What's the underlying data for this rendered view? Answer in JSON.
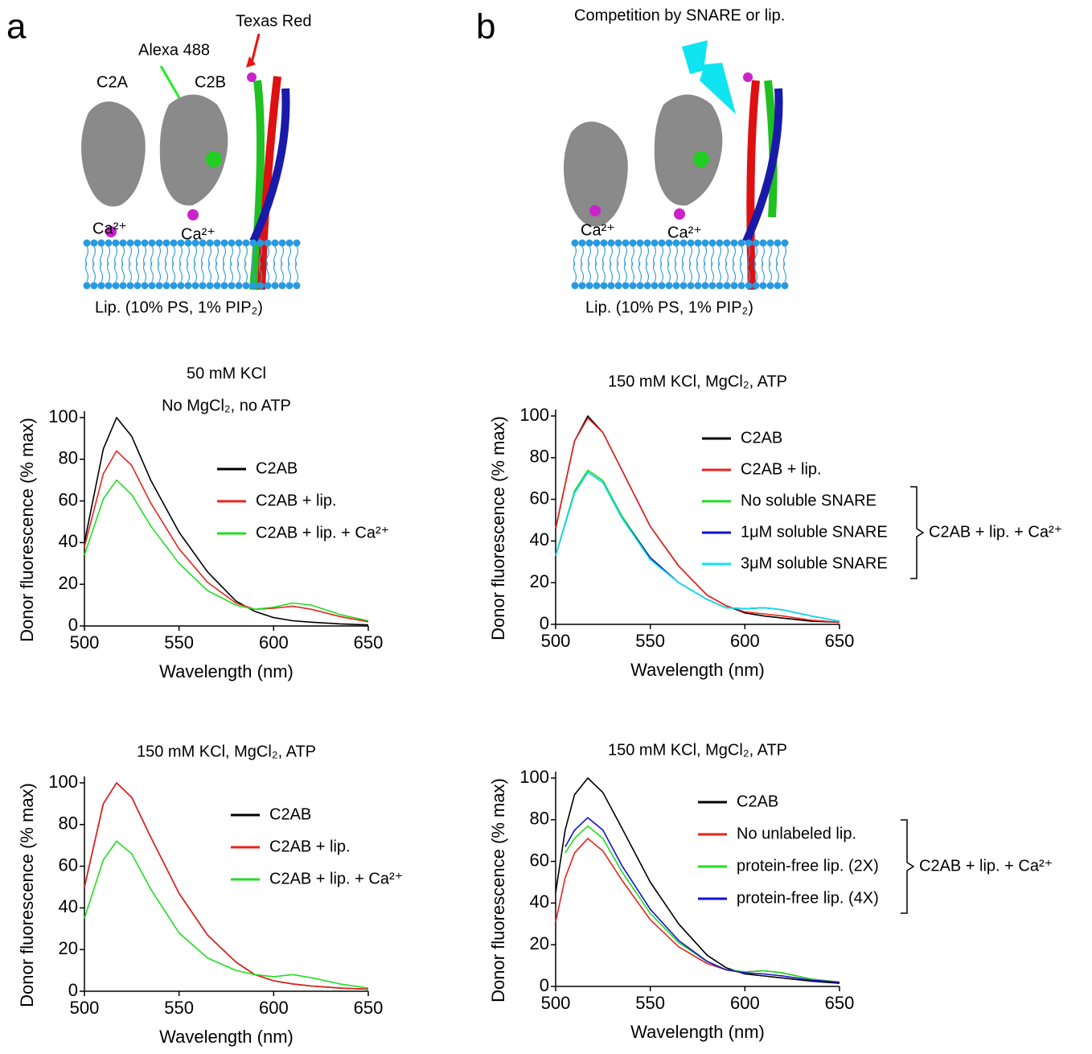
{
  "panel_a": {
    "letter": "a",
    "texas_red": "Texas Red",
    "alexa": "Alexa 488",
    "c2a": "C2A",
    "c2b": "C2B",
    "ca_1": "Ca²⁺",
    "ca_2": "Ca²⁺",
    "lipid": "Lip. (10% PS, 1% PIP₂)"
  },
  "panel_b": {
    "letter": "b",
    "competition": "Competition by SNARE or lip.",
    "ca_1": "Ca²⁺",
    "ca_2": "Ca²⁺",
    "lipid": "Lip. (10% PS, 1% PIP₂)"
  },
  "chart_data": [
    {
      "type": "line",
      "title": "50 mM KCl",
      "subtitle": "No MgCl₂, no ATP",
      "x_label": "Wavelength (nm)",
      "y_label": "Donor fluorescence (% max)",
      "x": [
        500,
        510,
        517,
        525,
        535,
        550,
        565,
        580,
        590,
        600,
        610,
        620,
        635,
        650
      ],
      "xlim": [
        500,
        650
      ],
      "xticks": [
        500,
        550,
        600,
        650
      ],
      "ylim": [
        0,
        100
      ],
      "yticks": [
        0,
        20,
        40,
        60,
        80,
        100
      ],
      "series": [
        {
          "name": "C2AB",
          "color": "#000000",
          "values": [
            40,
            85,
            100,
            91,
            70,
            45,
            26,
            12,
            7,
            4,
            2.5,
            1.8,
            1,
            0.5
          ]
        },
        {
          "name": "C2AB + lip.",
          "color": "#e8241c",
          "values": [
            38,
            73,
            84,
            77,
            59,
            37,
            21,
            11,
            8,
            8.5,
            9.5,
            8,
            4.5,
            2
          ]
        },
        {
          "name": "C2AB + lip. + Ca²⁺",
          "color": "#22dd22",
          "values": [
            34,
            61,
            70,
            63,
            48,
            30,
            17,
            10,
            8,
            9,
            11,
            10,
            5.5,
            2.5
          ]
        }
      ]
    },
    {
      "type": "line",
      "title": "150 mM KCl, MgCl₂, ATP",
      "annotation": "C2AB + lip. + Ca²⁺",
      "x_label": "Wavelength (nm)",
      "y_label": "Donor fluorescence (% max)",
      "x": [
        500,
        510,
        517,
        525,
        535,
        550,
        565,
        580,
        590,
        600,
        610,
        620,
        635,
        650
      ],
      "xlim": [
        500,
        650
      ],
      "xticks": [
        500,
        550,
        600,
        650
      ],
      "ylim": [
        0,
        100
      ],
      "yticks": [
        0,
        20,
        40,
        60,
        80,
        100
      ],
      "series": [
        {
          "name": "C2AB",
          "color": "#000000",
          "values": [
            46,
            88,
            100,
            92,
            74,
            47,
            28,
            14,
            9,
            5.5,
            4,
            3,
            1.5,
            1
          ]
        },
        {
          "name": "C2AB + lip.",
          "color": "#e8241c",
          "values": [
            46,
            88,
            99,
            92,
            74,
            47,
            28,
            14,
            9,
            6,
            5,
            4,
            2,
            1
          ]
        },
        {
          "name": "No soluble SNARE",
          "color": "#22dd22",
          "values": [
            33,
            64,
            74,
            69,
            52,
            32,
            20,
            12,
            8,
            7.5,
            8,
            7,
            4,
            1.5
          ]
        },
        {
          "name": "1μM soluble SNARE",
          "color": "#1010d0",
          "values": [
            33,
            63,
            73,
            68,
            51,
            32,
            20,
            12,
            8,
            7.5,
            8,
            7,
            4,
            1.5
          ]
        },
        {
          "name": "3μM soluble SNARE",
          "color": "#10e4f0",
          "values": [
            33,
            63,
            73,
            68,
            51,
            31,
            20,
            12,
            8,
            7.5,
            8,
            7,
            4,
            1.5
          ]
        }
      ]
    },
    {
      "type": "line",
      "title": "150 mM KCl, MgCl₂, ATP",
      "x_label": "Wavelength (nm)",
      "y_label": "Donor fluorescence (% max)",
      "x": [
        500,
        510,
        517,
        525,
        535,
        550,
        565,
        580,
        590,
        600,
        610,
        620,
        635,
        650
      ],
      "xlim": [
        500,
        650
      ],
      "xticks": [
        500,
        550,
        600,
        650
      ],
      "ylim": [
        0,
        100
      ],
      "yticks": [
        0,
        20,
        40,
        60,
        80,
        100
      ],
      "series": [
        {
          "name": "C2AB",
          "color": "#000000",
          "values": [
            50,
            90,
            100,
            93,
            74,
            47,
            27,
            14,
            8,
            5,
            3.5,
            2.5,
            1.5,
            1
          ]
        },
        {
          "name": "C2AB + lip.",
          "color": "#e8241c",
          "values": [
            50,
            90,
            100,
            93,
            74,
            47,
            27,
            14,
            8,
            5,
            3.5,
            2.5,
            1.5,
            1
          ]
        },
        {
          "name": "C2AB + lip. + Ca²⁺",
          "color": "#22dd22",
          "values": [
            35,
            63,
            72,
            66,
            49,
            28,
            16,
            10,
            8,
            7,
            8,
            6.5,
            3.5,
            1.5
          ]
        }
      ]
    },
    {
      "type": "line",
      "title": "150 mM KCl, MgCl₂, ATP",
      "annotation": "C2AB + lip. + Ca²⁺",
      "x_label": "Wavelength (nm)",
      "y_label": "Donor fluorescence (% max)",
      "x": [
        500,
        505,
        510,
        517,
        525,
        535,
        550,
        565,
        580,
        590,
        600,
        610,
        620,
        635,
        650
      ],
      "xlim": [
        500,
        650
      ],
      "xticks": [
        500,
        550,
        600,
        650
      ],
      "ylim": [
        0,
        100
      ],
      "yticks": [
        0,
        20,
        40,
        60,
        80,
        100
      ],
      "series": [
        {
          "name": "C2AB",
          "color": "#000000",
          "values": [
            45,
            75,
            92,
            100,
            93,
            76,
            50,
            30,
            15,
            9,
            6,
            5,
            4,
            2.5,
            1.5
          ]
        },
        {
          "name": "No unlabeled lip.",
          "color": "#e8241c",
          "values": [
            31,
            52,
            64,
            71,
            65,
            51,
            32,
            19,
            11,
            8,
            7,
            7.5,
            6.5,
            3.5,
            2
          ]
        },
        {
          "name": "protein-free lip. (2X)",
          "color": "#22dd22",
          "values": [
            null,
            64,
            71,
            77,
            71,
            55,
            35,
            21,
            12,
            8,
            7,
            7.5,
            6.5,
            3.5,
            2
          ]
        },
        {
          "name": "protein-free lip. (4X)",
          "color": "#1010d0",
          "values": [
            null,
            67,
            75,
            81,
            75,
            58,
            37,
            22,
            12,
            8,
            6.5,
            6,
            5,
            3,
            2
          ]
        }
      ]
    }
  ]
}
